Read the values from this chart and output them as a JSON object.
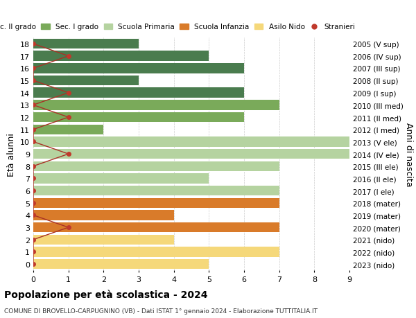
{
  "ages": [
    18,
    17,
    16,
    15,
    14,
    13,
    12,
    11,
    10,
    9,
    8,
    7,
    6,
    5,
    4,
    3,
    2,
    1,
    0
  ],
  "years": [
    "2005 (V sup)",
    "2006 (IV sup)",
    "2007 (III sup)",
    "2008 (II sup)",
    "2009 (I sup)",
    "2010 (III med)",
    "2011 (II med)",
    "2012 (I med)",
    "2013 (V ele)",
    "2014 (IV ele)",
    "2015 (III ele)",
    "2016 (II ele)",
    "2017 (I ele)",
    "2018 (mater)",
    "2019 (mater)",
    "2020 (mater)",
    "2021 (nido)",
    "2022 (nido)",
    "2023 (nido)"
  ],
  "bar_values": [
    3,
    5,
    6,
    3,
    6,
    7,
    6,
    2,
    9,
    9,
    7,
    5,
    7,
    7,
    4,
    7,
    4,
    7,
    5
  ],
  "bar_colors": [
    "#4a7c4e",
    "#4a7c4e",
    "#4a7c4e",
    "#4a7c4e",
    "#4a7c4e",
    "#7aaa5a",
    "#7aaa5a",
    "#7aaa5a",
    "#b5d3a0",
    "#b5d3a0",
    "#b5d3a0",
    "#b5d3a0",
    "#b5d3a0",
    "#d97b2a",
    "#d97b2a",
    "#d97b2a",
    "#f5d87a",
    "#f5d87a",
    "#f5d87a"
  ],
  "stranieri_values": [
    0,
    1,
    0,
    0,
    1,
    0,
    1,
    0,
    0,
    1,
    0,
    0,
    0,
    0,
    0,
    1,
    0,
    0,
    0
  ],
  "stranieri_color": "#c0392b",
  "stranieri_line_color": "#a93226",
  "title": "Popolazione per età scolastica - 2024",
  "subtitle": "COMUNE DI BROVELLO-CARPUGNINO (VB) - Dati ISTAT 1° gennaio 2024 - Elaborazione TUTTITALIA.IT",
  "ylabel": "Età alunni",
  "right_label": "Anni di nascita",
  "xlim": [
    0,
    9
  ],
  "background_color": "#ffffff",
  "grid_color": "#cccccc",
  "legend_labels": [
    "Sec. II grado",
    "Sec. I grado",
    "Scuola Primaria",
    "Scuola Infanzia",
    "Asilo Nido",
    "Stranieri"
  ],
  "legend_colors": [
    "#4a7c4e",
    "#7aaa5a",
    "#b5d3a0",
    "#d97b2a",
    "#f5d87a",
    "#c0392b"
  ]
}
